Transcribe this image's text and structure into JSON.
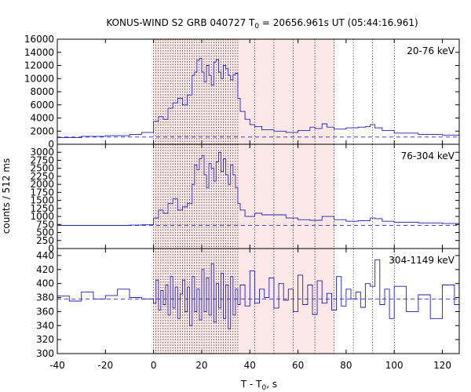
{
  "chart_data": {
    "type": "line",
    "title": "KONUS-WIND S2 GRB 040727 T",
    "title_sub": "0",
    "title_rest": " = 20656.961s UT (05:44:16.961)",
    "xlabel": "T - T",
    "xlabel_sub": "0",
    "xlabel_rest": ", s",
    "ylabel": "counts / 512 ms",
    "xlim": [
      -40,
      127
    ],
    "xticks": [
      "-40",
      "-20",
      "0",
      "20",
      "40",
      "60",
      "80",
      "100",
      "120"
    ],
    "shaded_interval": [
      0,
      75
    ],
    "colors": {
      "line": "#1f1fb0",
      "shade": "#fde8e8",
      "dash": "#2b2bc0",
      "vline": "#000000"
    },
    "vertical_markers": [
      0,
      1,
      2,
      3,
      4,
      5,
      6,
      7,
      8,
      9,
      10,
      11,
      12,
      13,
      14,
      15,
      16,
      17,
      18,
      19,
      20,
      21,
      22,
      23,
      24,
      25,
      26,
      27,
      28,
      29,
      30,
      31,
      32,
      33,
      34,
      35,
      42,
      50,
      58,
      67,
      75,
      83,
      91,
      100
    ],
    "panels": [
      {
        "band_label": "20-76 keV",
        "ylim": [
          0,
          16000
        ],
        "yticks": [
          "0",
          "2000",
          "4000",
          "6000",
          "8000",
          "10000",
          "12000",
          "14000",
          "16000"
        ],
        "background": 1100,
        "x": [
          -40,
          -30,
          -20,
          -10,
          -5,
          0,
          2,
          4,
          6,
          8,
          10,
          12,
          14,
          16,
          17,
          18,
          19,
          20,
          21,
          22,
          23,
          24,
          25,
          26,
          27,
          28,
          29,
          30,
          31,
          32,
          33,
          34,
          35,
          36,
          38,
          40,
          42,
          45,
          50,
          55,
          60,
          65,
          67,
          70,
          72,
          75,
          80,
          85,
          88,
          90,
          92,
          95,
          100,
          110,
          120,
          127
        ],
        "y": [
          1000,
          1200,
          1300,
          1500,
          1800,
          3500,
          4200,
          3800,
          5500,
          6300,
          7000,
          6000,
          7500,
          10500,
          11000,
          12800,
          13100,
          11000,
          9500,
          12000,
          10500,
          9000,
          12500,
          12900,
          11000,
          10000,
          12000,
          11500,
          10500,
          9800,
          10600,
          10800,
          7000,
          5000,
          3800,
          3000,
          2700,
          2200,
          2000,
          1800,
          2100,
          2600,
          2400,
          3100,
          2600,
          2300,
          2500,
          2600,
          2700,
          3000,
          2500,
          2100,
          1700,
          1500,
          1400,
          1400
        ]
      },
      {
        "band_label": "76-304 keV",
        "ylim": [
          0,
          3250
        ],
        "yticks": [
          "0",
          "250",
          "500",
          "750",
          "1000",
          "1250",
          "1500",
          "1750",
          "2000",
          "2250",
          "2500",
          "2750",
          "3000"
        ],
        "background": 720,
        "x": [
          -40,
          -30,
          -20,
          -10,
          -5,
          0,
          2,
          4,
          6,
          8,
          10,
          12,
          14,
          16,
          17,
          18,
          19,
          20,
          21,
          22,
          23,
          24,
          25,
          26,
          27,
          28,
          29,
          30,
          31,
          32,
          33,
          34,
          35,
          36,
          38,
          40,
          42,
          45,
          50,
          55,
          60,
          65,
          70,
          75,
          80,
          85,
          90,
          92,
          95,
          100,
          110,
          120,
          127
        ],
        "y": [
          720,
          720,
          720,
          730,
          740,
          950,
          1200,
          1100,
          1400,
          1550,
          1200,
          1300,
          1400,
          2000,
          2600,
          2450,
          2800,
          2900,
          2300,
          1900,
          2650,
          2500,
          2100,
          2700,
          3000,
          2400,
          2800,
          2300,
          2000,
          2600,
          2300,
          1900,
          1400,
          1200,
          1000,
          1000,
          1100,
          1050,
          1050,
          950,
          900,
          880,
          1000,
          900,
          850,
          870,
          950,
          930,
          850,
          820,
          800,
          780,
          760
        ]
      },
      {
        "band_label": "304-1149 keV",
        "ylim": [
          300,
          450
        ],
        "yticks": [
          "300",
          "320",
          "340",
          "360",
          "380",
          "400",
          "420",
          "440"
        ],
        "background": 378,
        "x": [
          -40,
          -35,
          -30,
          -25,
          -20,
          -15,
          -10,
          -5,
          0,
          1,
          2,
          3,
          4,
          5,
          6,
          7,
          8,
          9,
          10,
          11,
          12,
          13,
          14,
          15,
          16,
          17,
          18,
          19,
          20,
          21,
          22,
          23,
          24,
          25,
          26,
          27,
          28,
          29,
          30,
          31,
          32,
          33,
          34,
          35,
          36,
          38,
          40,
          42,
          44,
          46,
          48,
          50,
          52,
          54,
          56,
          58,
          60,
          62,
          64,
          66,
          68,
          70,
          72,
          74,
          76,
          78,
          80,
          82,
          84,
          86,
          88,
          90,
          92,
          94,
          96,
          98,
          100,
          105,
          110,
          115,
          120,
          125,
          127
        ],
        "y": [
          382,
          375,
          388,
          378,
          383,
          392,
          380,
          378,
          372,
          405,
          362,
          390,
          370,
          398,
          355,
          410,
          365,
          395,
          350,
          385,
          405,
          360,
          395,
          340,
          410,
          360,
          392,
          348,
          420,
          360,
          408,
          355,
          428,
          345,
          400,
          365,
          415,
          350,
          398,
          335,
          410,
          355,
          392,
          370,
          398,
          368,
          418,
          372,
          392,
          380,
          408,
          365,
          400,
          376,
          392,
          360,
          412,
          370,
          398,
          356,
          404,
          372,
          386,
          362,
          410,
          368,
          392,
          378,
          388,
          366,
          400,
          396,
          434,
          370,
          392,
          350,
          396,
          360,
          384,
          350,
          398,
          370,
          380
        ]
      }
    ]
  }
}
